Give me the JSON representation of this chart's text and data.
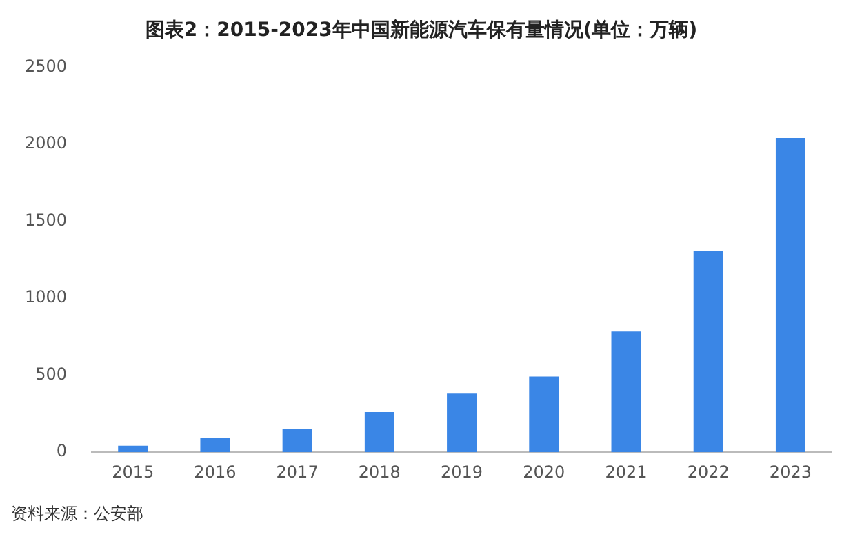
{
  "chart_data": {
    "type": "bar",
    "title": "图表2：2015-2023年中国新能源汽车保有量情况(单位：万辆)",
    "categories": [
      "2015",
      "2016",
      "2017",
      "2018",
      "2019",
      "2020",
      "2021",
      "2022",
      "2023"
    ],
    "values": [
      42,
      91,
      153,
      261,
      381,
      492,
      784,
      1310,
      2041
    ],
    "color": "#3a86e6",
    "ylim": [
      0,
      2500
    ],
    "yticks": [
      0,
      500,
      1000,
      1500,
      2000,
      2500
    ],
    "grid": false,
    "legend": false,
    "annotations": [
      "资料来源：公安部"
    ]
  }
}
